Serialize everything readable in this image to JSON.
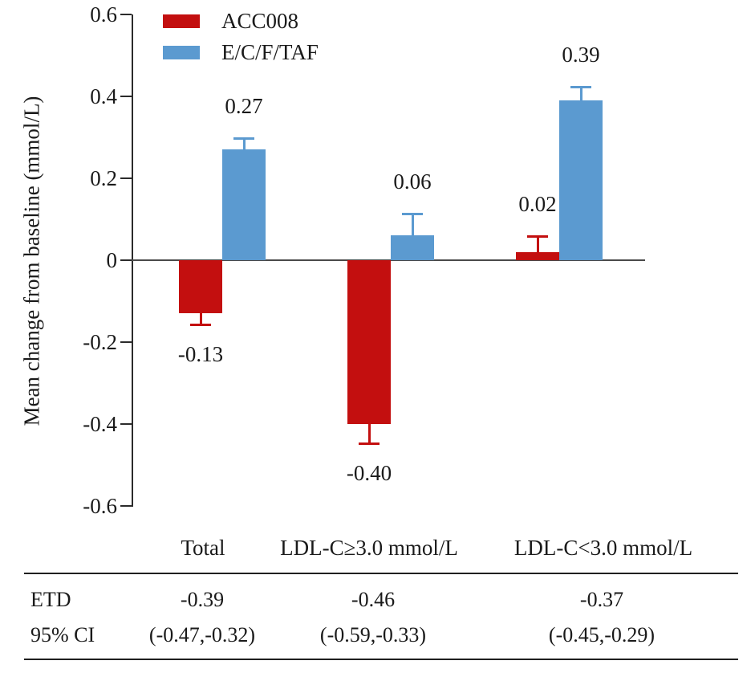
{
  "figure": {
    "background": "#ffffff",
    "text_color": "#1a1a1a",
    "axis_color": "#2b2b2b"
  },
  "chart_data": {
    "type": "bar",
    "title": "",
    "xlabel": "",
    "ylabel": "Mean change from baseline (mmol/L)",
    "ylim": [
      -0.6,
      0.6
    ],
    "yticks": [
      {
        "v": 0.6,
        "label": "0.6"
      },
      {
        "v": 0.4,
        "label": "0.4"
      },
      {
        "v": 0.2,
        "label": "0.2"
      },
      {
        "v": 0,
        "label": "0"
      },
      {
        "v": -0.2,
        "label": "-0.2"
      },
      {
        "v": -0.4,
        "label": "-0.4"
      },
      {
        "v": -0.6,
        "label": "-0.6"
      }
    ],
    "categories": [
      "Total",
      "LDL-C≥3.0 mmol/L",
      "LDL-C<3.0 mmol/L"
    ],
    "grid": false,
    "legend_position": "top-left inside plot",
    "error_bars": "one-sided, away from zero",
    "series": [
      {
        "name": "ACC008",
        "color": "#c30f0f",
        "values": [
          -0.13,
          -0.4,
          0.02
        ],
        "errors": [
          0.03,
          0.05,
          0.04
        ],
        "value_labels": [
          "-0.13",
          "-0.40",
          "0.02"
        ]
      },
      {
        "name": "E/C/F/TAF",
        "color": "#5b9ad0",
        "values": [
          0.27,
          0.06,
          0.39
        ],
        "errors": [
          0.03,
          0.055,
          0.035
        ],
        "value_labels": [
          "0.27",
          "0.06",
          "0.39"
        ]
      }
    ]
  },
  "table": {
    "rows": [
      {
        "label": "ETD",
        "values": [
          "-0.39",
          "-0.46",
          "-0.37"
        ]
      },
      {
        "label": "95% CI",
        "values": [
          "(-0.47,-0.32)",
          "(-0.59,-0.33)",
          "(-0.45,-0.29)"
        ]
      }
    ]
  }
}
